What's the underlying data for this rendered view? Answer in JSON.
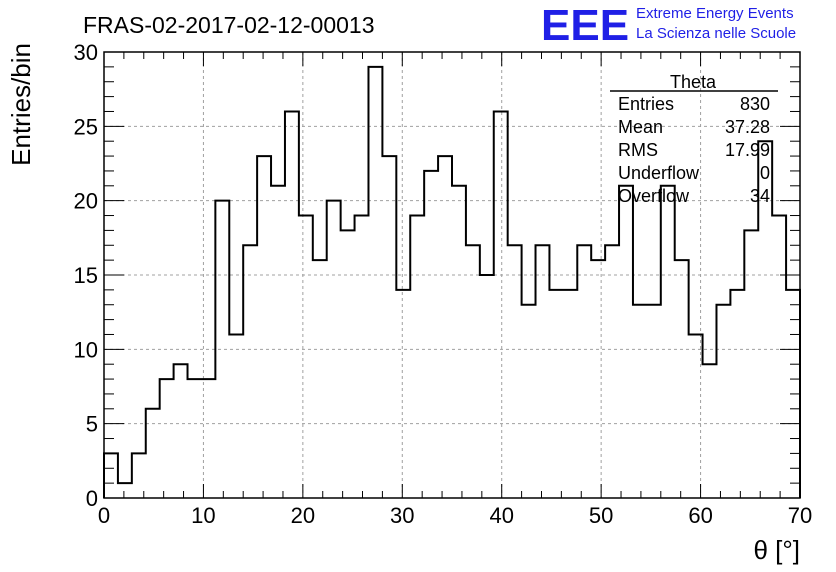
{
  "header": {
    "title": "FRAS-02-2017-02-12-00013",
    "logo_text": "EEE",
    "logo_line1": "Extreme Energy Events",
    "logo_line2": "La Scienza nelle Scuole",
    "brand_color": "#1f1fe6"
  },
  "stats": {
    "title": "Theta",
    "rows": [
      {
        "label": "Entries",
        "value": "830"
      },
      {
        "label": "Mean",
        "value": "37.28"
      },
      {
        "label": "RMS",
        "value": "17.99"
      },
      {
        "label": "Underflow",
        "value": "0"
      },
      {
        "label": "Overflow",
        "value": "34"
      }
    ]
  },
  "chart_data": {
    "type": "histogram",
    "title": "FRAS-02-2017-02-12-00013",
    "xlabel": "θ [°]",
    "ylabel": "Entries/bin",
    "xlim": [
      0,
      70
    ],
    "ylim": [
      0,
      30
    ],
    "bin_width": 1.4,
    "xticks": [
      0,
      10,
      20,
      30,
      40,
      50,
      60,
      70
    ],
    "yticks": [
      0,
      5,
      10,
      15,
      20,
      25,
      30
    ],
    "grid": true,
    "line_color": "#000000",
    "values": [
      3,
      1,
      3,
      6,
      8,
      9,
      8,
      8,
      20,
      11,
      17,
      23,
      21,
      26,
      19,
      16,
      20,
      18,
      19,
      29,
      23,
      14,
      19,
      22,
      23,
      21,
      17,
      15,
      26,
      17,
      13,
      17,
      14,
      14,
      17,
      16,
      17,
      21,
      13,
      13,
      21,
      16,
      11,
      9,
      13,
      14,
      18,
      24,
      19,
      14
    ]
  }
}
